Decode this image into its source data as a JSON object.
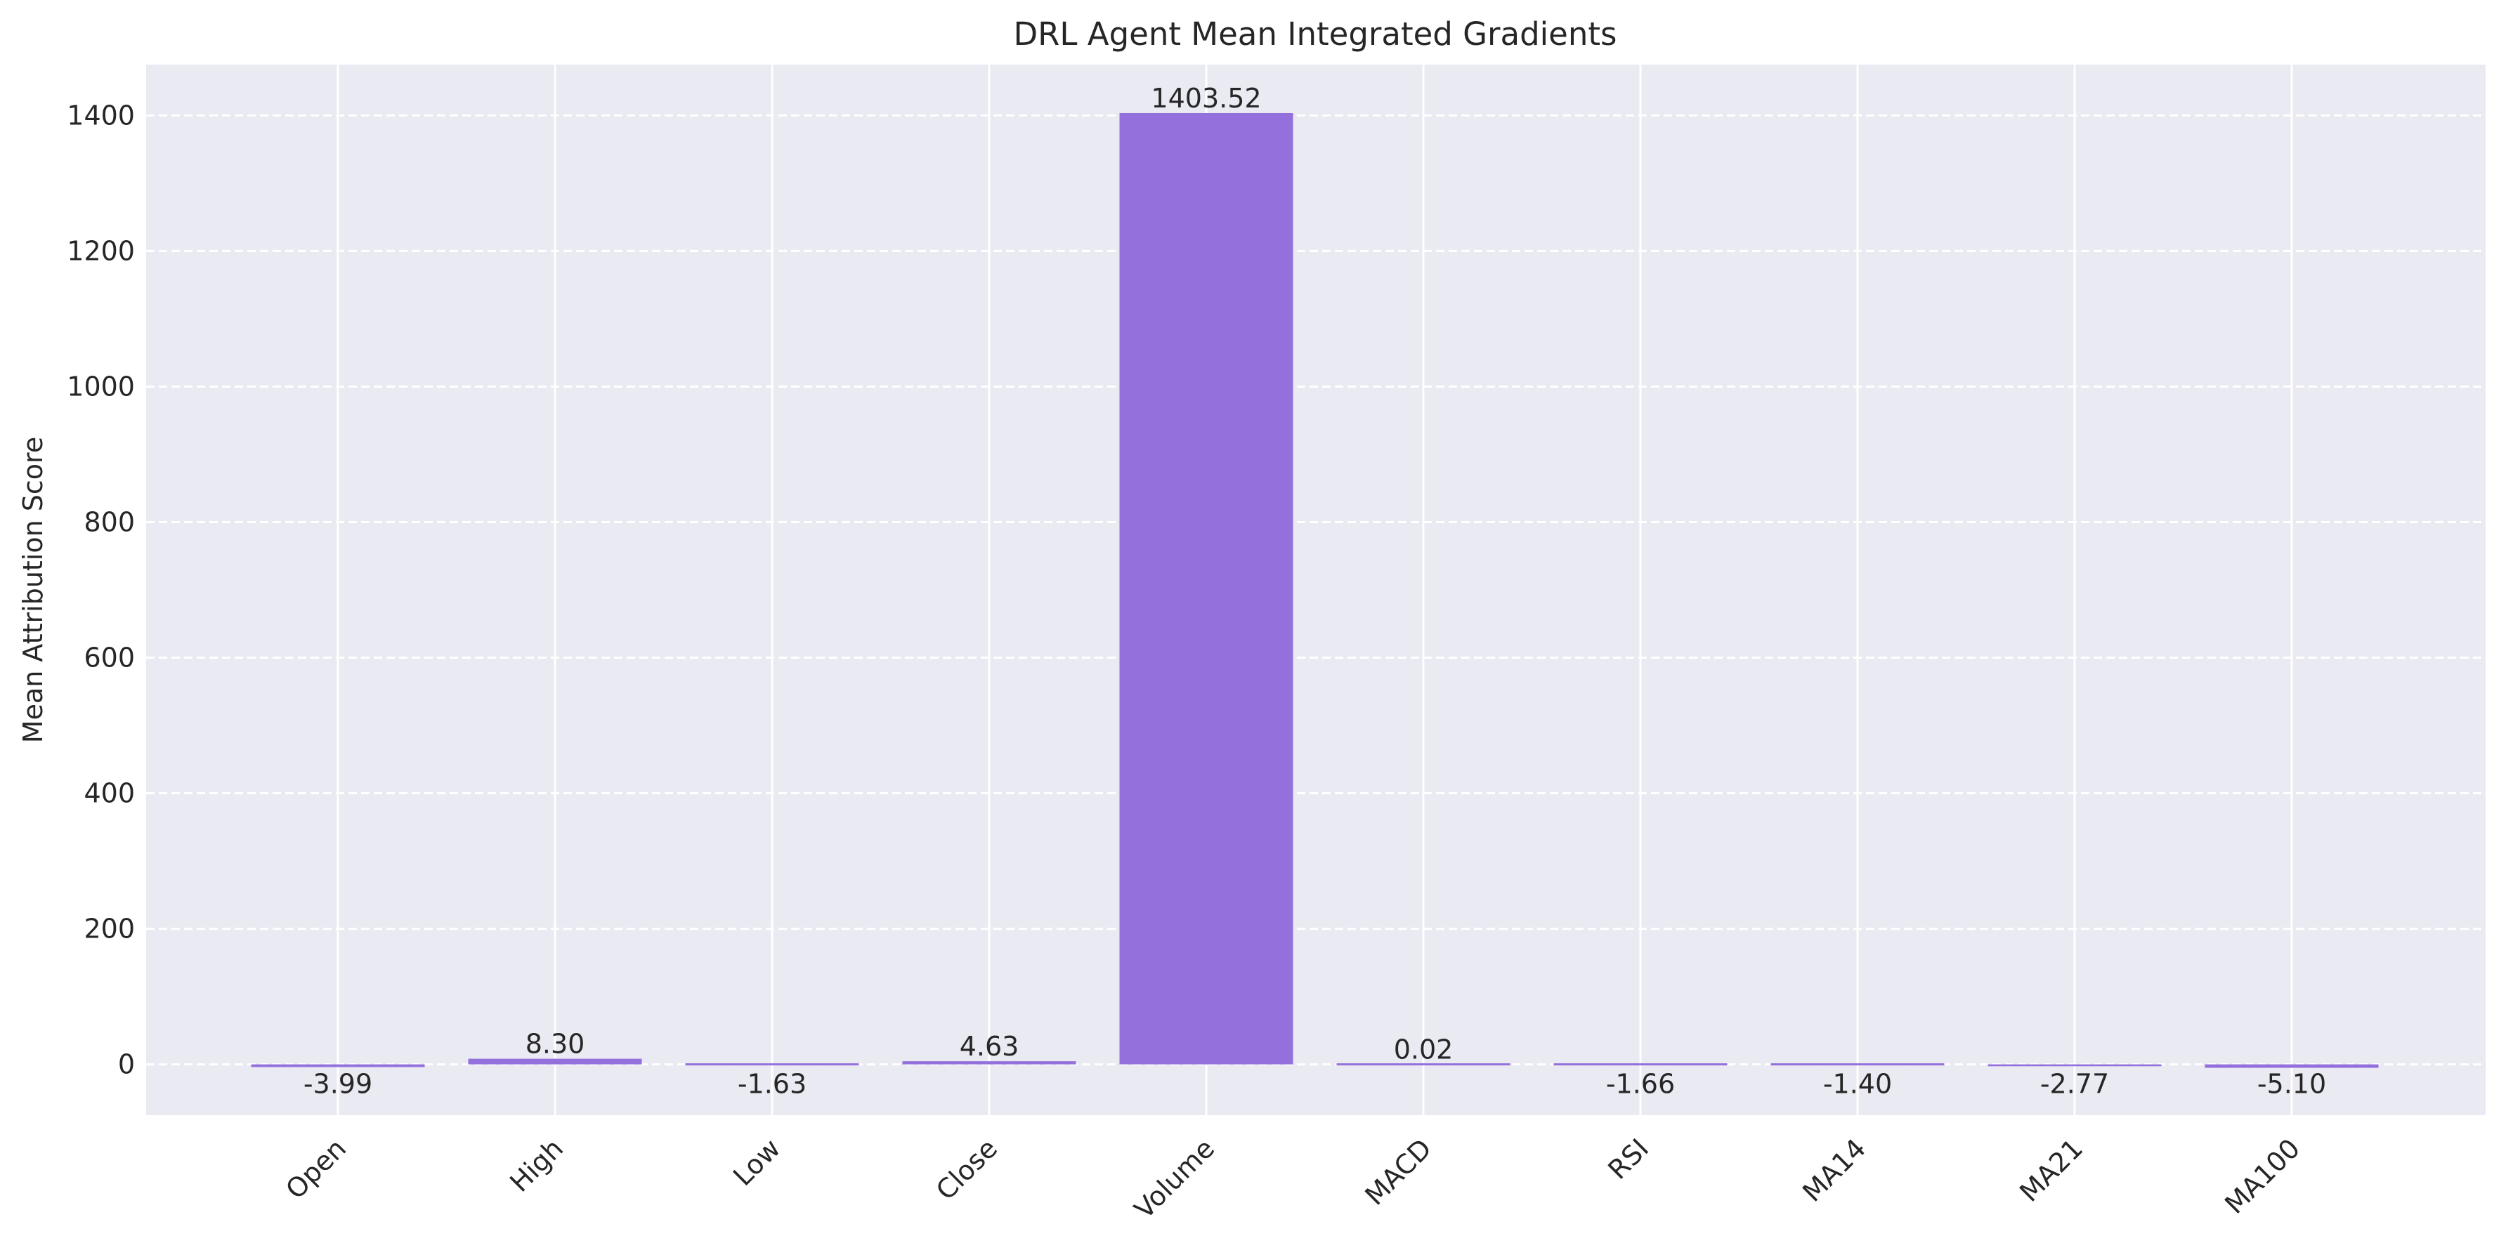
{
  "chart_data": {
    "type": "bar",
    "title": "DRL Agent Mean Integrated Gradients",
    "xlabel": "",
    "ylabel": "Mean Attribution Score",
    "categories": [
      "Open",
      "High",
      "Low",
      "Close",
      "Volume",
      "MACD",
      "RSI",
      "MA14",
      "MA21",
      "MA100"
    ],
    "values": [
      -3.99,
      8.3,
      -1.63,
      4.63,
      1403.52,
      0.02,
      -1.66,
      -1.4,
      -2.77,
      -5.1
    ],
    "value_labels": [
      "-3.99",
      "8.30",
      "-1.63",
      "4.63",
      "1403.52",
      "0.02",
      "-1.66",
      "-1.40",
      "-2.77",
      "-5.10"
    ],
    "ylim": [
      -75,
      1475
    ],
    "yticks": [
      0,
      200,
      400,
      600,
      800,
      1000,
      1200,
      1400
    ],
    "ytick_labels": [
      "0",
      "200",
      "400",
      "600",
      "800",
      "1000",
      "1200",
      "1400"
    ],
    "grid": true,
    "bar_color": "#9370DB",
    "plot_background": "#EAEAF2",
    "grid_color": "#FFFFFF"
  }
}
